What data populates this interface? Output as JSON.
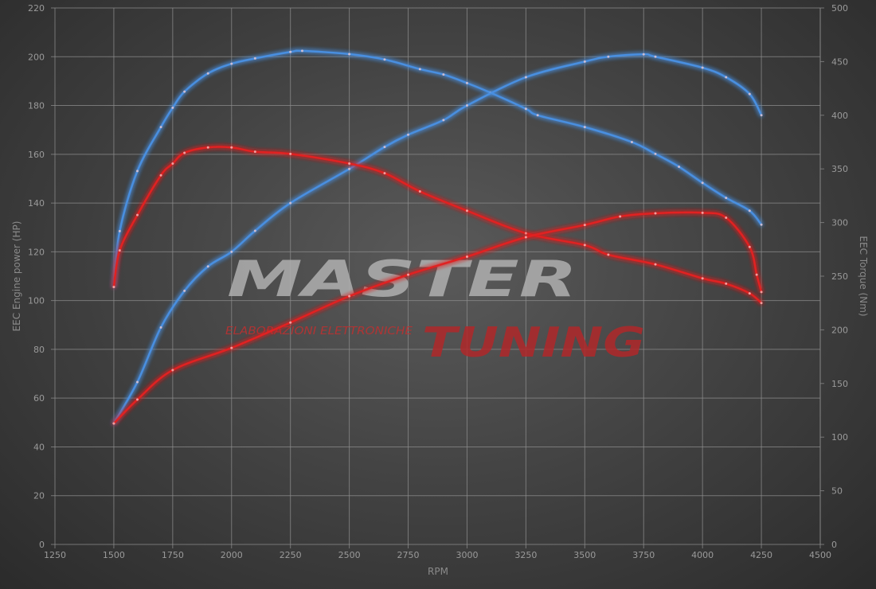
{
  "chart_data": {
    "type": "line",
    "xlabel": "RPM",
    "ylabel_left": "EEC Engine power (HP)",
    "ylabel_right": "EEC Torque (Nm)",
    "xlim": [
      1250,
      4500
    ],
    "ylim_left": [
      0,
      220
    ],
    "ylim_right": [
      0,
      500
    ],
    "x_ticks": [
      1250,
      1500,
      1750,
      2000,
      2250,
      2500,
      2750,
      3000,
      3250,
      3500,
      3750,
      4000,
      4250,
      4500
    ],
    "y_ticks_left": [
      0,
      20,
      40,
      60,
      80,
      100,
      120,
      140,
      160,
      180,
      200,
      220
    ],
    "y_ticks_right": [
      0,
      50,
      100,
      150,
      200,
      250,
      300,
      350,
      400,
      450,
      500
    ],
    "grid": true,
    "colors": {
      "tuned": "#4a8fe0",
      "stock": "#e02020"
    },
    "series": [
      {
        "axis": "right",
        "color": "tuned",
        "x": [
          1500,
          1525,
          1600,
          1700,
          1750,
          1800,
          1900,
          2000,
          2100,
          2250,
          2300,
          2500,
          2650,
          2800,
          2900,
          3000,
          3100,
          3250,
          3300,
          3500,
          3700,
          3800,
          3900,
          4000,
          4100,
          4200,
          4250
        ],
        "y": [
          240,
          292,
          348,
          389,
          407,
          422,
          439,
          448,
          453,
          459,
          460,
          457,
          452,
          443,
          438,
          430,
          421,
          406,
          400,
          389,
          375,
          364,
          352,
          337,
          323,
          311,
          298
        ]
      },
      {
        "axis": "left",
        "color": "tuned",
        "x": [
          1500,
          1600,
          1700,
          1800,
          1900,
          2000,
          2100,
          2250,
          2500,
          2650,
          2750,
          2900,
          3000,
          3250,
          3500,
          3600,
          3750,
          3800,
          4000,
          4100,
          4200,
          4250
        ],
        "y": [
          49.6,
          66.6,
          89,
          104,
          114,
          120,
          128.6,
          140,
          154,
          163,
          168,
          174,
          180,
          191.6,
          198,
          200,
          201,
          200,
          195.5,
          191.6,
          184.7,
          176
        ]
      },
      {
        "axis": "right",
        "color": "stock",
        "x": [
          1500,
          1525,
          1600,
          1700,
          1750,
          1800,
          1900,
          2000,
          2100,
          2250,
          2500,
          2650,
          2800,
          3000,
          3250,
          3500,
          3600,
          3800,
          4000,
          4100,
          4200,
          4250
        ],
        "y": [
          240,
          274,
          307,
          344,
          355,
          365,
          370,
          370,
          366,
          364,
          355,
          346,
          329,
          311,
          290,
          279,
          270,
          261,
          248,
          243,
          234,
          225
        ]
      },
      {
        "axis": "left",
        "color": "stock",
        "x": [
          1500,
          1600,
          1750,
          2000,
          2250,
          2500,
          2750,
          3000,
          3250,
          3500,
          3650,
          3800,
          4000,
          4100,
          4200,
          4230,
          4250
        ],
        "y": [
          49.6,
          59.4,
          71.5,
          80.6,
          91,
          101.8,
          110.6,
          118,
          126,
          131,
          134.5,
          135.8,
          136,
          134,
          122,
          110.6,
          103.5
        ]
      }
    ]
  },
  "watermark": {
    "line1": "MASTER",
    "line2": "TUNING",
    "tagline": "ELABORAZIONI ELETTRONICHE"
  }
}
